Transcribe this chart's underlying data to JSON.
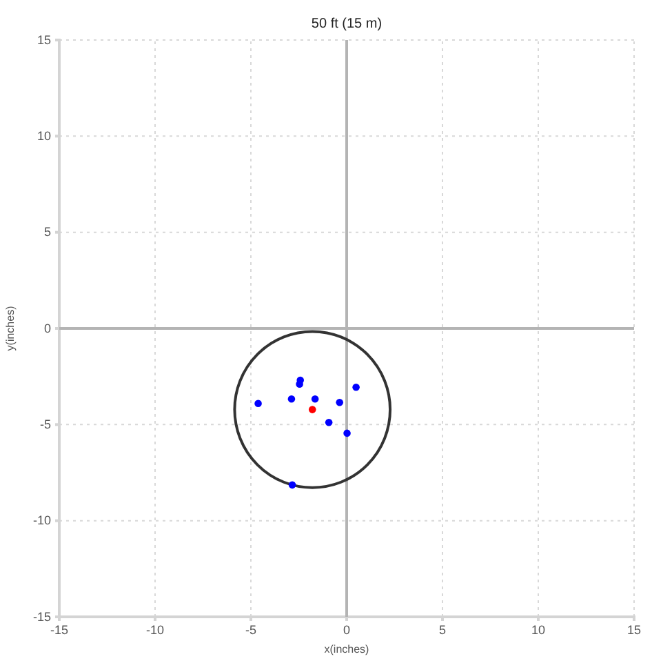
{
  "chart_data": {
    "type": "scatter",
    "title": "50 ft (15 m)",
    "xlabel": "x(inches)",
    "ylabel": "y(inches)",
    "xlim": [
      -15,
      15
    ],
    "ylim": [
      -15,
      15
    ],
    "xticks": [
      -15,
      -10,
      -5,
      0,
      5,
      10,
      15
    ],
    "yticks": [
      -15,
      -10,
      -5,
      0,
      5,
      10,
      15
    ],
    "grid": true,
    "marker": "circle",
    "series": [
      {
        "color": "#0000ff",
        "x": [
          -4.62,
          -2.88,
          -2.42,
          -2.46,
          -1.65,
          -0.37,
          0.49,
          -0.93,
          0.02,
          -2.84
        ],
        "values": [
          -3.9,
          -3.67,
          -2.69,
          -2.9,
          -3.67,
          -3.85,
          -3.06,
          -4.89,
          -5.45,
          -8.14
        ]
      },
      {
        "color": "#ff0000",
        "x": [
          -1.79
        ],
        "values": [
          -4.22
        ]
      }
    ]
  }
}
